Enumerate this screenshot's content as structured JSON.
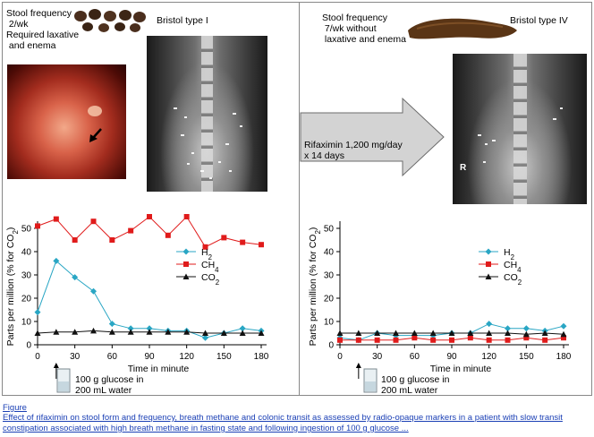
{
  "left_panel": {
    "stool_label": "Stool frequency\n 2/wk\nRequired laxative\n and enema",
    "bristol_label": "Bristol type I",
    "glucose_label": "100 g glucose in\n200 mL water"
  },
  "right_panel": {
    "stool_label": "Stool frequency\n 7/wk without\n laxative and enema",
    "bristol_label": "Bristol type IV",
    "glucose_label": "100 g glucose in\n200 mL water",
    "xray_marker": "R"
  },
  "arrow": {
    "label": "Rifaximin 1,200 mg/day\nx 14 days"
  },
  "caption": {
    "link": "Figure",
    "text": "Effect of rifaximin on stool form and frequency, breath methane and colonic transit as assessed by radio-opaque markers in a patient with slow transit constipation associated with high breath methane in fasting state and following ingestion of 100 g glucose ..."
  },
  "colors": {
    "h2": "#29a6c4",
    "ch4": "#e01b1b",
    "co2": "#111111"
  },
  "chart_data": [
    {
      "type": "line",
      "xlabel": "Time in minute",
      "ylabel": "Parts per million (% for CO2)",
      "xlim": [
        0,
        180
      ],
      "ylim": [
        0,
        50
      ],
      "xticks": [
        0,
        30,
        60,
        90,
        120,
        150,
        180
      ],
      "yticks": [
        0,
        10,
        20,
        30,
        40,
        50
      ],
      "legend_position": "right",
      "x": [
        0,
        15,
        30,
        45,
        60,
        75,
        90,
        105,
        120,
        135,
        150,
        165,
        180
      ],
      "series": [
        {
          "name": "H2",
          "key": "h2",
          "marker": "diamond",
          "values": [
            14,
            36,
            29,
            23,
            9,
            7,
            7,
            6,
            6,
            3,
            5,
            7,
            6
          ]
        },
        {
          "name": "CH4",
          "key": "ch4",
          "marker": "square",
          "values": [
            51,
            54,
            45,
            53,
            45,
            49,
            55,
            47,
            55,
            42,
            46,
            44,
            43
          ]
        },
        {
          "name": "CO2",
          "key": "co2",
          "marker": "triangle",
          "values": [
            5,
            5.5,
            5.5,
            6,
            5.5,
            5.5,
            5.5,
            5.5,
            5.5,
            5,
            5,
            5,
            5
          ]
        }
      ]
    },
    {
      "type": "line",
      "xlabel": "Time in minute",
      "ylabel": "Parts per million (% for CO2)",
      "xlim": [
        0,
        180
      ],
      "ylim": [
        0,
        50
      ],
      "xticks": [
        0,
        30,
        60,
        90,
        120,
        150,
        180
      ],
      "yticks": [
        0,
        10,
        20,
        30,
        40,
        50
      ],
      "legend_position": "right",
      "x": [
        0,
        15,
        30,
        45,
        60,
        75,
        90,
        105,
        120,
        135,
        150,
        165,
        180
      ],
      "series": [
        {
          "name": "H2",
          "key": "h2",
          "marker": "diamond",
          "values": [
            3,
            2,
            5,
            4,
            4,
            4,
            5,
            5,
            9,
            7,
            7,
            6,
            8
          ]
        },
        {
          "name": "CH4",
          "key": "ch4",
          "marker": "square",
          "values": [
            2,
            2,
            2,
            2,
            3,
            2,
            2,
            3,
            2,
            2,
            3,
            2,
            3
          ]
        },
        {
          "name": "CO2",
          "key": "co2",
          "marker": "triangle",
          "values": [
            5,
            5,
            5,
            5,
            5,
            5,
            5,
            5,
            5,
            5,
            4.5,
            5,
            4.5
          ]
        }
      ]
    }
  ]
}
